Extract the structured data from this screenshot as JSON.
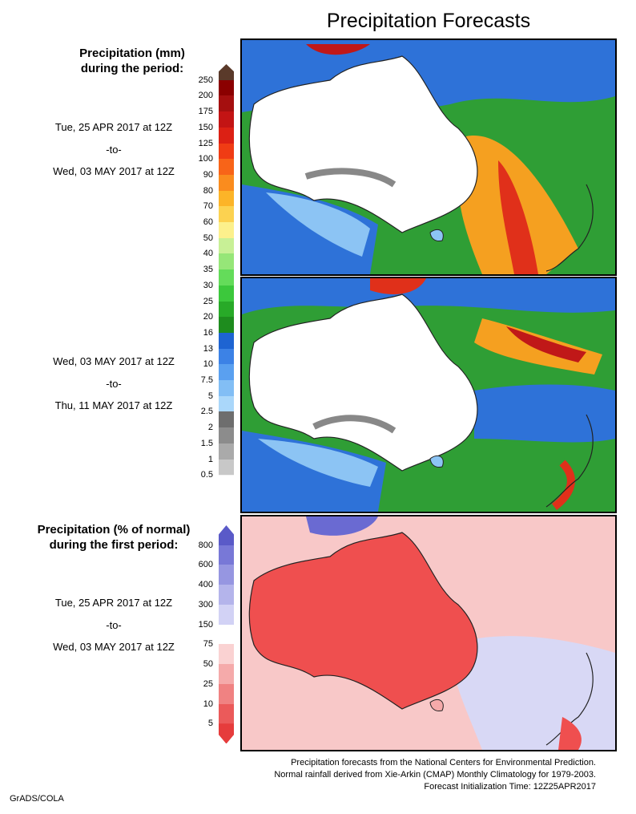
{
  "title": "Precipitation Forecasts",
  "legend_mm": {
    "heading": [
      "Precipitation (mm)",
      "during the period:"
    ],
    "levels": [
      "250",
      "200",
      "175",
      "150",
      "125",
      "100",
      "90",
      "80",
      "70",
      "60",
      "50",
      "40",
      "35",
      "30",
      "25",
      "20",
      "16",
      "13",
      "10",
      "7.5",
      "5",
      "2.5",
      "2",
      "1.5",
      "1",
      "0.5"
    ],
    "colors": [
      "#5a3a2a",
      "#8b0000",
      "#a50f0f",
      "#c31414",
      "#dc2014",
      "#f03c14",
      "#f86418",
      "#fa8c1e",
      "#fcb428",
      "#fcd250",
      "#fcf08c",
      "#c8f096",
      "#96e678",
      "#64dc5a",
      "#3cc83c",
      "#28aa28",
      "#1e8c1e",
      "#1e64d2",
      "#3c82e6",
      "#5aa0f0",
      "#82bef5",
      "#aad7fa",
      "#6e6e6e",
      "#8c8c8c",
      "#aaaaaa",
      "#c8c8c8",
      "#ffffff"
    ]
  },
  "legend_pct": {
    "heading": [
      "Precipitation (% of normal)",
      "during the first period:"
    ],
    "levels": [
      "800",
      "600",
      "400",
      "300",
      "150",
      "75",
      "50",
      "25",
      "10",
      "5"
    ],
    "colors": [
      "#5a5ac8",
      "#7878d7",
      "#9696e1",
      "#b4b4eb",
      "#d2d2f5",
      "#ffffff",
      "#fad2d2",
      "#f5aaaa",
      "#f08282",
      "#eb5a5a",
      "#e63c3c"
    ]
  },
  "periods": [
    {
      "from": "Tue, 25 APR 2017 at 12Z",
      "sep": "-to-",
      "to": "Wed, 03 MAY 2017 at 12Z"
    },
    {
      "from": "Wed, 03 MAY 2017 at 12Z",
      "sep": "-to-",
      "to": "Thu, 11 MAY 2017 at 12Z"
    },
    {
      "from": "Tue, 25 APR 2017 at 12Z",
      "sep": "-to-",
      "to": "Wed, 03 MAY 2017 at 12Z"
    }
  ],
  "credits": [
    "Precipitation forecasts from the National Centers for Environmental Prediction.",
    "Normal rainfall derived from Xie-Arkin (CMAP) Monthly Climatology for 1979-2003.",
    "Forecast Initialization Time: 12Z25APR2017"
  ],
  "footer": "GrADS/COLA"
}
